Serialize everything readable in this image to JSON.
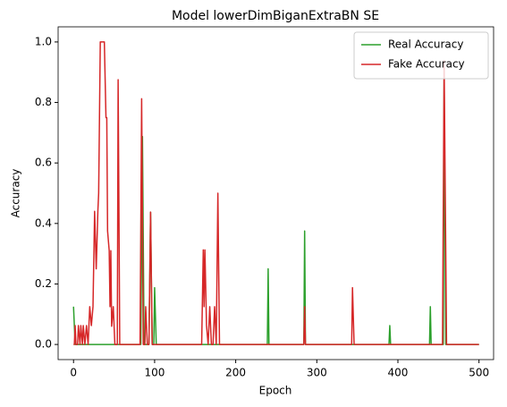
{
  "chart_data": {
    "type": "line",
    "title": "Model lowerDimBiganExtraBN SE",
    "xlabel": "Epoch",
    "ylabel": "Accuracy",
    "xlim": [
      -19,
      518
    ],
    "ylim": [
      -0.05,
      1.05
    ],
    "xticks": [
      0,
      100,
      200,
      300,
      400,
      500
    ],
    "yticks": [
      {
        "value": 0,
        "label": "0.0"
      },
      {
        "value": 0.2,
        "label": "0.2"
      },
      {
        "value": 0.4,
        "label": "0.4"
      },
      {
        "value": 0.6,
        "label": "0.6"
      },
      {
        "value": 0.8,
        "label": "0.8"
      },
      {
        "value": 1,
        "label": "1.0"
      }
    ],
    "legend": "upper right",
    "series": [
      {
        "name": "Real Accuracy",
        "color": "#2ca02c",
        "x": [
          0,
          2,
          83,
          85,
          87,
          93,
          95,
          97,
          99,
          100,
          102,
          239,
          240,
          241,
          284,
          285,
          286,
          389,
          390,
          391,
          439,
          440,
          441,
          456,
          457,
          459,
          500
        ],
        "values": [
          0.125,
          0,
          0,
          0.6875,
          0,
          0,
          0.4375,
          0,
          0,
          0.1875,
          0,
          0,
          0.25,
          0,
          0,
          0.375,
          0,
          0,
          0.0625,
          0,
          0,
          0.125,
          0,
          0,
          0.875,
          0,
          0
        ]
      },
      {
        "name": "Fake Accuracy",
        "color": "#d62728",
        "x": [
          0,
          1,
          2,
          3,
          5,
          6,
          8,
          9,
          11,
          12,
          14,
          16,
          18,
          20,
          22,
          24,
          26,
          28,
          30,
          31,
          33,
          34,
          38,
          40,
          41,
          42,
          44,
          45,
          46,
          47,
          49,
          51,
          54,
          55,
          57,
          82,
          84,
          86,
          88,
          89,
          91,
          93,
          95,
          97,
          158,
          160,
          161,
          162,
          164,
          166,
          168,
          170,
          172,
          174,
          176,
          178,
          180,
          284,
          285,
          286,
          343,
          344,
          346,
          455,
          457,
          460,
          500
        ],
        "values": [
          0,
          0,
          0.0625,
          0,
          0,
          0.0625,
          0,
          0.0625,
          0,
          0.0625,
          0,
          0.0625,
          0,
          0.125,
          0.0625,
          0.125,
          0.44,
          0.25,
          0.44,
          0.5,
          1,
          1,
          1,
          0.75,
          0.75,
          0.375,
          0.31,
          0.125,
          0.31,
          0.06,
          0.125,
          0,
          0,
          0.875,
          0,
          0,
          0.8125,
          0,
          0,
          0.125,
          0,
          0,
          0.4375,
          0,
          0,
          0.3125,
          0.125,
          0.3125,
          0.0625,
          0,
          0.125,
          0,
          0,
          0.125,
          0,
          0.5,
          0,
          0,
          0.125,
          0,
          0,
          0.1875,
          0,
          0,
          0.9375,
          0,
          0
        ]
      }
    ]
  }
}
